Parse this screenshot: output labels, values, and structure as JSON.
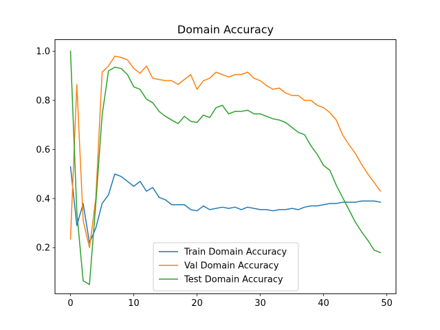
{
  "chart_data": {
    "type": "line",
    "title": "Domain Accuracy",
    "xlabel": "",
    "ylabel": "",
    "xlim": [
      -2.45,
      51.45
    ],
    "ylim": [
      0.0125,
      1.0475
    ],
    "xticks": [
      0,
      10,
      20,
      30,
      40,
      50
    ],
    "yticks": [
      0.2,
      0.4,
      0.6,
      0.8,
      1.0
    ],
    "ytick_labels": [
      "0.2",
      "0.4",
      "0.6",
      "0.8",
      "1.0"
    ],
    "grid": false,
    "legend_position": "lower-center",
    "x": [
      0,
      1,
      2,
      3,
      4,
      5,
      6,
      7,
      8,
      9,
      10,
      11,
      12,
      13,
      14,
      15,
      16,
      17,
      18,
      19,
      20,
      21,
      22,
      23,
      24,
      25,
      26,
      27,
      28,
      29,
      30,
      31,
      32,
      33,
      34,
      35,
      36,
      37,
      38,
      39,
      40,
      41,
      42,
      43,
      44,
      45,
      46,
      47,
      48,
      49
    ],
    "series": [
      {
        "name": "Train Domain Accuracy",
        "color": "#1f77b4",
        "values": [
          0.53,
          0.29,
          0.38,
          0.22,
          0.28,
          0.38,
          0.415,
          0.5,
          0.49,
          0.47,
          0.45,
          0.47,
          0.43,
          0.445,
          0.405,
          0.395,
          0.375,
          0.375,
          0.375,
          0.355,
          0.35,
          0.37,
          0.355,
          0.36,
          0.365,
          0.36,
          0.365,
          0.355,
          0.365,
          0.36,
          0.355,
          0.355,
          0.35,
          0.355,
          0.355,
          0.36,
          0.355,
          0.365,
          0.37,
          0.37,
          0.375,
          0.38,
          0.38,
          0.385,
          0.385,
          0.385,
          0.39,
          0.39,
          0.39,
          0.385
        ]
      },
      {
        "name": "Val Domain Accuracy",
        "color": "#ff7f0e",
        "values": [
          0.235,
          0.865,
          0.31,
          0.2,
          0.4,
          0.915,
          0.94,
          0.98,
          0.975,
          0.965,
          0.93,
          0.91,
          0.94,
          0.89,
          0.885,
          0.88,
          0.88,
          0.865,
          0.885,
          0.905,
          0.845,
          0.88,
          0.89,
          0.915,
          0.905,
          0.895,
          0.905,
          0.905,
          0.915,
          0.89,
          0.88,
          0.86,
          0.845,
          0.85,
          0.83,
          0.82,
          0.82,
          0.8,
          0.8,
          0.78,
          0.77,
          0.75,
          0.72,
          0.66,
          0.62,
          0.585,
          0.54,
          0.5,
          0.465,
          0.43
        ]
      },
      {
        "name": "Test Domain Accuracy",
        "color": "#2ca02c",
        "values": [
          1.0,
          0.345,
          0.065,
          0.05,
          0.38,
          0.74,
          0.92,
          0.935,
          0.93,
          0.905,
          0.855,
          0.845,
          0.805,
          0.79,
          0.755,
          0.735,
          0.72,
          0.705,
          0.735,
          0.715,
          0.71,
          0.74,
          0.73,
          0.77,
          0.78,
          0.745,
          0.755,
          0.755,
          0.76,
          0.745,
          0.745,
          0.735,
          0.725,
          0.72,
          0.71,
          0.69,
          0.67,
          0.66,
          0.615,
          0.58,
          0.535,
          0.515,
          0.455,
          0.405,
          0.355,
          0.305,
          0.265,
          0.23,
          0.19,
          0.18
        ]
      }
    ]
  }
}
